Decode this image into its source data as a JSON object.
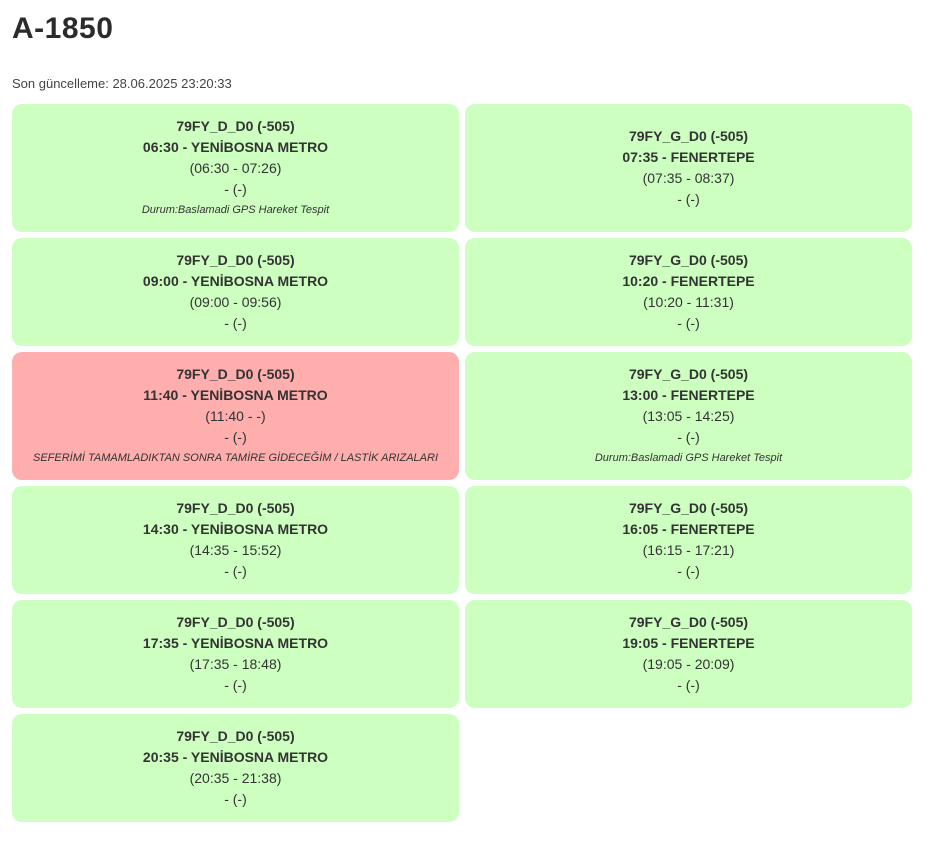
{
  "page": {
    "title": "A-1850",
    "last_updated": "Son güncelleme: 28.06.2025 23:20:33"
  },
  "trips": [
    {
      "code": "79FY_D_D0 (-505)",
      "departure": "06:30 - YENİBOSNA METRO",
      "actual": "(06:30 - 07:26)",
      "extra": "- (-)",
      "note": "Durum:Baslamadi GPS Hareket Tespit",
      "status_color": "#ccffc0"
    },
    {
      "code": "79FY_G_D0 (-505)",
      "departure": "07:35 - FENERTEPE",
      "actual": "(07:35 - 08:37)",
      "extra": "- (-)",
      "note": "",
      "status_color": "#ccffc0"
    },
    {
      "code": "79FY_D_D0 (-505)",
      "departure": "09:00 - YENİBOSNA METRO",
      "actual": "(09:00 - 09:56)",
      "extra": "- (-)",
      "note": "",
      "status_color": "#ccffc0"
    },
    {
      "code": "79FY_G_D0 (-505)",
      "departure": "10:20 - FENERTEPE",
      "actual": "(10:20 - 11:31)",
      "extra": "- (-)",
      "note": "",
      "status_color": "#ccffc0"
    },
    {
      "code": "79FY_D_D0 (-505)",
      "departure": "11:40 - YENİBOSNA METRO",
      "actual": "(11:40 - -)",
      "extra": "- (-)",
      "note": "SEFERİMİ TAMAMLADIKTAN SONRA TAMİRE GİDECEĞİM / LASTİK ARIZALARI",
      "status_color": "#ffaeae"
    },
    {
      "code": "79FY_G_D0 (-505)",
      "departure": "13:00 - FENERTEPE",
      "actual": "(13:05 - 14:25)",
      "extra": "- (-)",
      "note": "Durum:Baslamadi GPS Hareket Tespit",
      "status_color": "#ccffc0"
    },
    {
      "code": "79FY_D_D0 (-505)",
      "departure": "14:30 - YENİBOSNA METRO",
      "actual": "(14:35 - 15:52)",
      "extra": "- (-)",
      "note": "",
      "status_color": "#ccffc0"
    },
    {
      "code": "79FY_G_D0 (-505)",
      "departure": "16:05 - FENERTEPE",
      "actual": "(16:15 - 17:21)",
      "extra": "- (-)",
      "note": "",
      "status_color": "#ccffc0"
    },
    {
      "code": "79FY_D_D0 (-505)",
      "departure": "17:35 - YENİBOSNA METRO",
      "actual": "(17:35 - 18:48)",
      "extra": "- (-)",
      "note": "",
      "status_color": "#ccffc0"
    },
    {
      "code": "79FY_G_D0 (-505)",
      "departure": "19:05 - FENERTEPE",
      "actual": "(19:05 - 20:09)",
      "extra": "- (-)",
      "note": "",
      "status_color": "#ccffc0"
    },
    {
      "code": "79FY_D_D0 (-505)",
      "departure": "20:35 - YENİBOSNA METRO",
      "actual": "(20:35 - 21:38)",
      "extra": "- (-)",
      "note": "",
      "status_color": "#ccffc0"
    }
  ]
}
